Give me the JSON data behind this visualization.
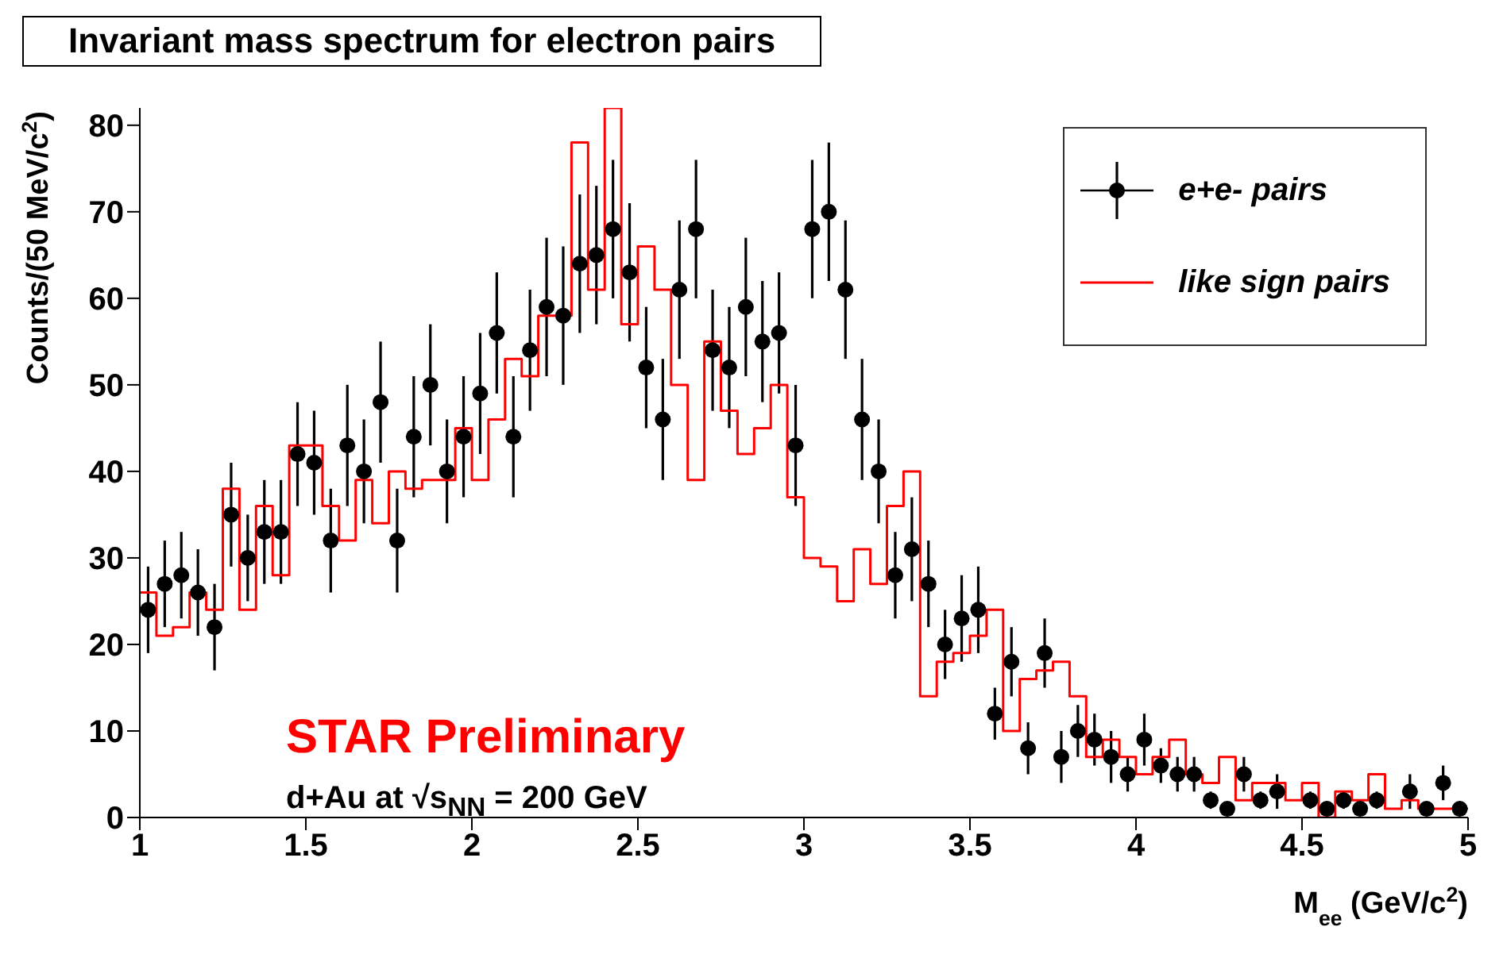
{
  "chart_data": {
    "type": "scatter",
    "title": "Invariant mass spectrum for electron pairs",
    "xlabel": "M$_{ee}$ (GeV/c$^{2}$)",
    "ylabel": "Counts/(50 MeV/c$^{2}$)",
    "annotations": [
      "STAR Preliminary",
      "d+Au at √s$_{NN}$ = 200 GeV"
    ],
    "xlim": [
      1,
      5
    ],
    "xticks": [
      1,
      1.5,
      2,
      2.5,
      3,
      3.5,
      4,
      4.5,
      5
    ],
    "ylim": [
      0,
      82
    ],
    "yticks": [
      0,
      10,
      20,
      30,
      40,
      50,
      60,
      70,
      80
    ],
    "legend": "top right",
    "marker": "circle",
    "series": [
      {
        "name": "e+e- pairs",
        "color": "#000000",
        "x": [
          1.025,
          1.075,
          1.125,
          1.175,
          1.225,
          1.275,
          1.325,
          1.375,
          1.425,
          1.475,
          1.525,
          1.575,
          1.625,
          1.675,
          1.725,
          1.775,
          1.825,
          1.875,
          1.925,
          1.975,
          2.025,
          2.075,
          2.125,
          2.175,
          2.225,
          2.275,
          2.325,
          2.375,
          2.425,
          2.475,
          2.525,
          2.575,
          2.625,
          2.675,
          2.725,
          2.775,
          2.825,
          2.875,
          2.925,
          2.975,
          3.025,
          3.075,
          3.125,
          3.175,
          3.225,
          3.275,
          3.325,
          3.375,
          3.425,
          3.475,
          3.525,
          3.575,
          3.625,
          3.675,
          3.725,
          3.775,
          3.825,
          3.875,
          3.925,
          3.975,
          4.025,
          4.075,
          4.125,
          4.175,
          4.225,
          4.275,
          4.325,
          4.375,
          4.425,
          4.475,
          4.525,
          4.575,
          4.625,
          4.675,
          4.725,
          4.775,
          4.825,
          4.875,
          4.925,
          4.975
        ],
        "values": [
          24,
          27,
          28,
          26,
          22,
          35,
          30,
          33,
          33,
          42,
          41,
          32,
          43,
          40,
          48,
          32,
          44,
          50,
          40,
          44,
          49,
          56,
          44,
          54,
          59,
          58,
          64,
          65,
          68,
          63,
          52,
          46,
          61,
          68,
          54,
          52,
          59,
          55,
          56,
          43,
          68,
          70,
          61,
          46,
          40,
          28,
          31,
          27,
          20,
          23,
          24,
          12,
          18,
          8,
          19,
          7,
          10,
          9,
          7,
          5,
          9,
          6,
          5,
          5,
          2,
          1,
          5,
          2,
          3,
          null,
          2,
          1,
          2,
          1,
          2,
          null,
          3,
          1,
          4,
          1
        ],
        "errors": [
          5,
          5,
          5,
          5,
          5,
          6,
          5,
          6,
          6,
          6,
          6,
          6,
          7,
          6,
          7,
          6,
          7,
          7,
          6,
          7,
          7,
          7,
          7,
          7,
          8,
          8,
          8,
          8,
          8,
          8,
          7,
          7,
          8,
          8,
          7,
          7,
          8,
          7,
          7,
          7,
          8,
          8,
          8,
          7,
          6,
          5,
          6,
          5,
          4,
          5,
          5,
          3,
          4,
          3,
          4,
          3,
          3,
          3,
          3,
          2,
          3,
          2,
          2,
          2,
          1,
          null,
          2,
          1,
          2,
          null,
          1,
          null,
          1,
          null,
          1,
          null,
          2,
          null,
          2,
          null
        ]
      },
      {
        "name": "like sign pairs",
        "type": "histogram",
        "color": "#ff0000",
        "bins": [
          1,
          1.05,
          1.1,
          1.15,
          1.2,
          1.25,
          1.3,
          1.35,
          1.4,
          1.45,
          1.5,
          1.55,
          1.6,
          1.65,
          1.7,
          1.75,
          1.8,
          1.85,
          1.9,
          1.95,
          2,
          2.05,
          2.1,
          2.15,
          2.2,
          2.25,
          2.3,
          2.35,
          2.4,
          2.45,
          2.5,
          2.55,
          2.6,
          2.65,
          2.7,
          2.75,
          2.8,
          2.85,
          2.9,
          2.95,
          3,
          3.05,
          3.1,
          3.15,
          3.2,
          3.25,
          3.3,
          3.35,
          3.4,
          3.45,
          3.5,
          3.55,
          3.6,
          3.65,
          3.7,
          3.75,
          3.8,
          3.85,
          3.9,
          3.95,
          4,
          4.05,
          4.1,
          4.15,
          4.2,
          4.25,
          4.3,
          4.35,
          4.4,
          4.45,
          4.5,
          4.55,
          4.6,
          4.65,
          4.7,
          4.75,
          4.8,
          4.85,
          4.9,
          4.95,
          5
        ],
        "values": [
          26,
          21,
          22,
          26,
          24,
          38,
          24,
          36,
          28,
          43,
          43,
          36,
          32,
          39,
          34,
          40,
          38,
          39,
          39,
          45,
          39,
          46,
          53,
          51,
          58,
          58,
          78,
          61,
          82,
          57,
          66,
          61,
          50,
          39,
          55,
          47,
          42,
          45,
          50,
          37,
          30,
          29,
          25,
          31,
          27,
          36,
          40,
          14,
          18,
          19,
          21,
          24,
          10,
          16,
          17,
          18,
          14,
          7,
          9,
          7,
          5,
          7,
          9,
          5,
          4,
          7,
          2,
          4,
          4,
          2,
          4,
          0,
          3,
          2,
          5,
          1,
          2,
          1,
          1,
          1
        ]
      }
    ]
  }
}
